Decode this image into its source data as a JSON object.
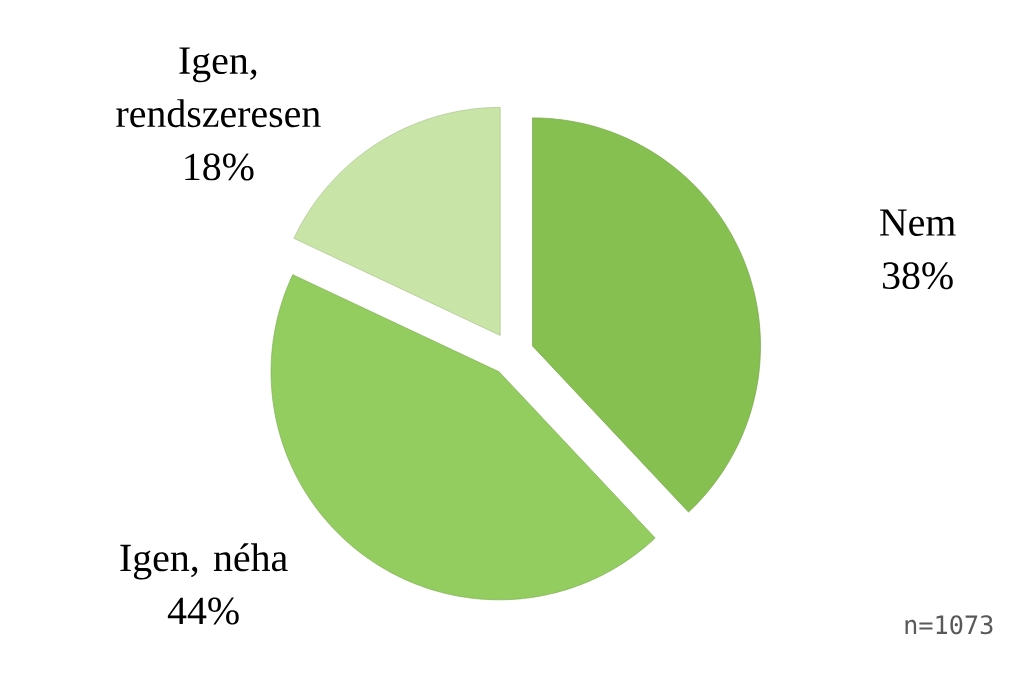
{
  "chart_data": {
    "type": "pie",
    "categories": [
      "Nem",
      "Igen, néha",
      "Igen, rendszeresen"
    ],
    "values": [
      38,
      44,
      18
    ],
    "value_labels": [
      "38%",
      "44%",
      "18%"
    ],
    "colors": [
      "#86c050",
      "#93cc5f",
      "#c8e4a6"
    ],
    "annotations": [
      "n=1073"
    ]
  }
}
